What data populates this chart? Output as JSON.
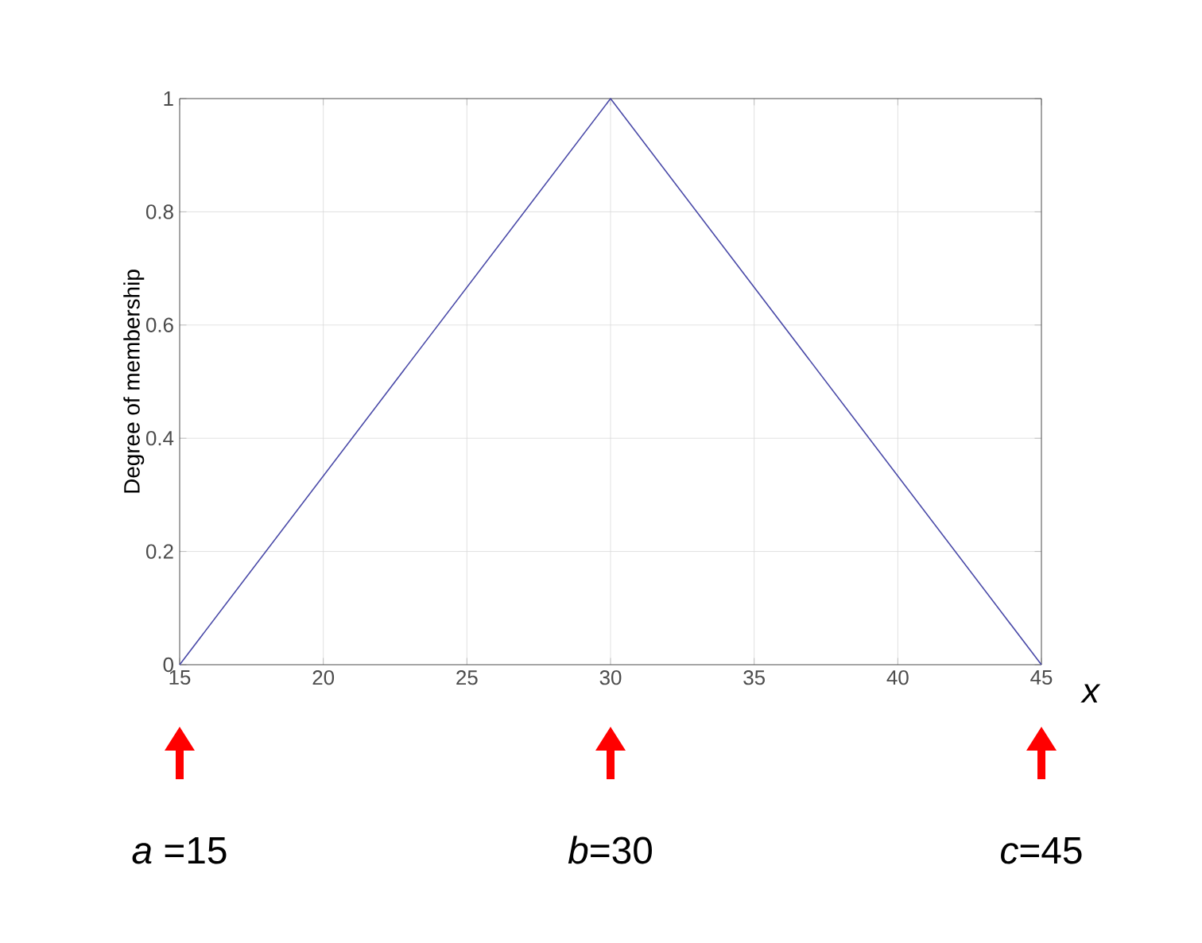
{
  "chart_data": {
    "type": "line",
    "xlabel": "x",
    "ylabel": "Degree of membership",
    "x": [
      15,
      30,
      45
    ],
    "series": [
      {
        "color": "#4a4aa8",
        "values": [
          0,
          1,
          0
        ]
      }
    ],
    "xlim": [
      15,
      45
    ],
    "xticks": [
      15,
      20,
      25,
      30,
      35,
      40,
      45
    ],
    "ylim": [
      0,
      1
    ],
    "yticks": [
      0,
      0.2,
      0.4,
      0.6,
      0.8,
      1
    ],
    "grid": true,
    "marker": "none",
    "line_style": "solid",
    "annotations": [
      "*a* =15",
      "*b*=30",
      "*c*=45"
    ]
  }
}
